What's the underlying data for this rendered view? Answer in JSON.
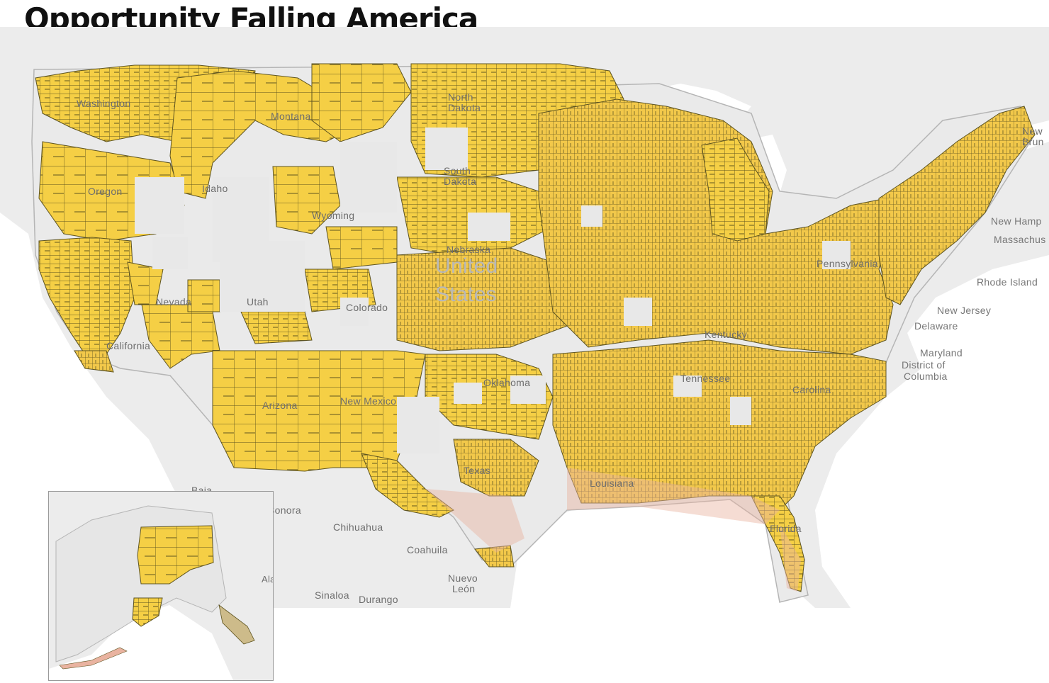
{
  "title": "Opportunity Falling America",
  "colors": {
    "county_fill": "#f5cf45",
    "county_stroke": "#5e5420",
    "coastal_tint": "#e9b3a0",
    "land": "#e8e8e8",
    "water": "#ffffff",
    "border": "#b5b5b5",
    "label": "#6e6e6e"
  },
  "labels": {
    "washington": "Washington",
    "montana": "Montana",
    "north_dakota": "North Dakota",
    "south_dakota": "South Dakota",
    "oregon": "Oregon",
    "idaho": "Idaho",
    "wyoming": "Wyoming",
    "nebraska": "Nebraska",
    "nevada": "Nevada",
    "utah": "Utah",
    "colorado": "Colorado",
    "california": "California",
    "arizona": "Arizona",
    "new_mexico": "New Mexico",
    "oklahoma": "Oklahoma",
    "texas": "Texas",
    "kentucky": "Kentucky",
    "tennessee": "Tennessee",
    "carolina": "Carolina",
    "pennsylvania": "Pennsylvania",
    "louisiana": "Louisiana",
    "florida": "Florida",
    "united_states": "United States",
    "new_hampshire": "New Hamp",
    "massachusetts": "Massachus",
    "rhode_island": "Rhode Island",
    "new_jersey": "New Jersey",
    "delaware": "Delaware",
    "maryland": "Maryland",
    "district_of_columbia_1": "District of",
    "district_of_columbia_2": "Columbia",
    "new_brunswick": "New Brun",
    "baja": "Baja",
    "sonora": "Sonora",
    "chihuahua": "Chihuahua",
    "coahuila": "Coahuila",
    "nuevo_leon_1": "Nuevo",
    "nuevo_leon_2": "León",
    "sinaloa": "Sinaloa",
    "durango": "Durango",
    "alaska": "Alaska"
  }
}
